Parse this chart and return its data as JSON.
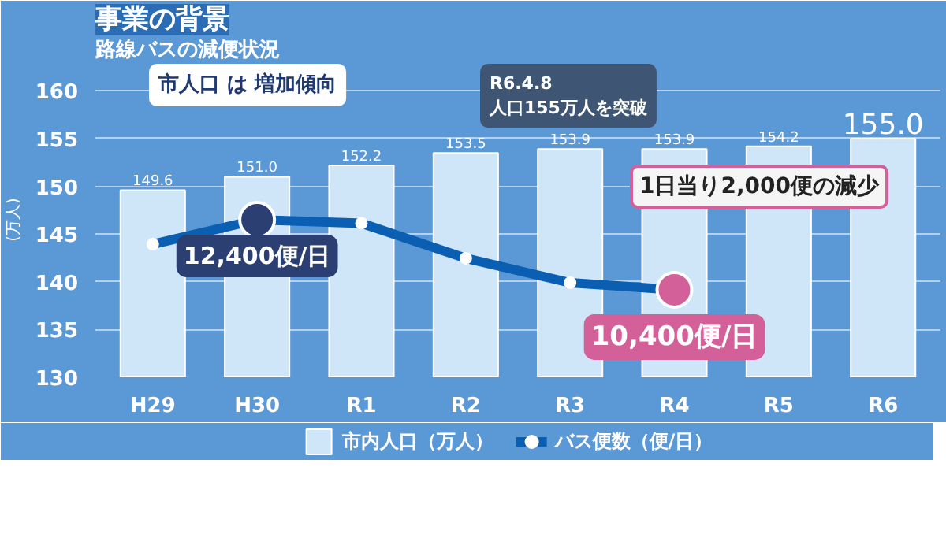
{
  "chart_data": {
    "type": "bar",
    "title": "事業の背景",
    "subtitle": "路線バスの減便状況",
    "ylabel": "(万人)",
    "categories": [
      "H29",
      "H30",
      "R1",
      "R2",
      "R3",
      "R4",
      "R5",
      "R6"
    ],
    "series": [
      {
        "name": "市内人口（万人）",
        "color": "#cfe6f8",
        "values": [
          149.6,
          151.0,
          152.2,
          153.5,
          153.9,
          153.9,
          154.2,
          155.0
        ],
        "value_labels": [
          "149.6",
          "151.0",
          "152.2",
          "153.5",
          "153.9",
          "153.9",
          "154.2",
          "155.0"
        ]
      },
      {
        "name": "バス便数（便/日）",
        "type": "line",
        "axis": "y2",
        "color": "#0b5fb3",
        "marker": "circle",
        "values": [
          11700,
          12400,
          12300,
          11300,
          10600,
          10400,
          null,
          null
        ],
        "value_labels": [
          null,
          "12,400便/日",
          null,
          null,
          null,
          "10,400便/日",
          null,
          null
        ]
      }
    ],
    "ylim": [
      130,
      163
    ],
    "yticks": [
      130,
      135,
      140,
      145,
      150,
      155,
      160
    ],
    "y2lim": [
      7900,
      16900
    ],
    "grid": "y",
    "legend": "bottom",
    "annotations": [
      "市人口 は 増加傾向",
      "R6.4.8\n人口155万人を突破",
      "1日当り2,000便の減少"
    ]
  }
}
